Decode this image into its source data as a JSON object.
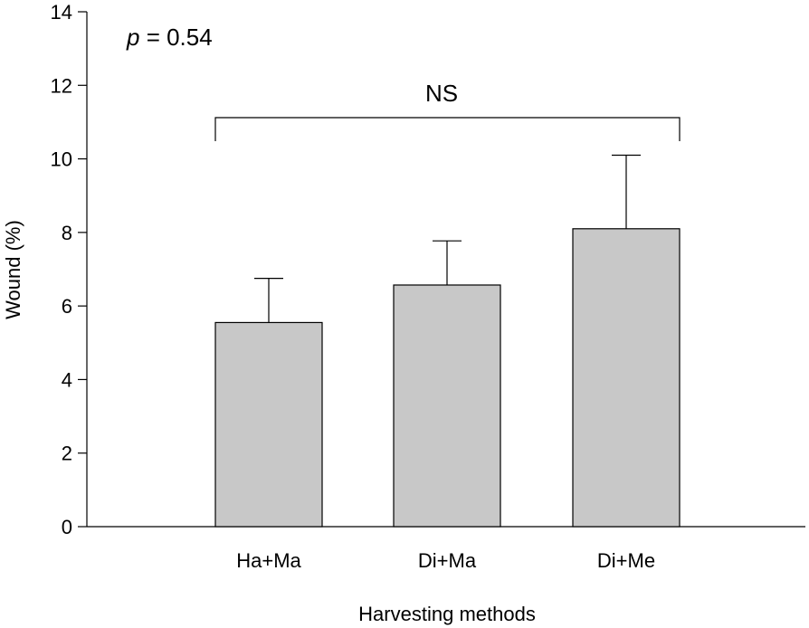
{
  "chart_data": {
    "type": "bar",
    "categories": [
      "Ha+Ma",
      "Di+Ma",
      "Di+Me"
    ],
    "values": [
      5.55,
      6.57,
      8.1
    ],
    "errors": [
      1.2,
      1.2,
      2.0
    ],
    "xlabel": "Harvesting methods",
    "ylabel": "Wound (%)",
    "ylim": [
      0,
      14
    ],
    "yticks": [
      0,
      2,
      4,
      6,
      8,
      10,
      12,
      14
    ],
    "grid": false,
    "bar_color": "#c8c8c8",
    "annotations": {
      "p_italic": "p",
      "p_rest": " = 0.54",
      "significance": "NS"
    }
  }
}
